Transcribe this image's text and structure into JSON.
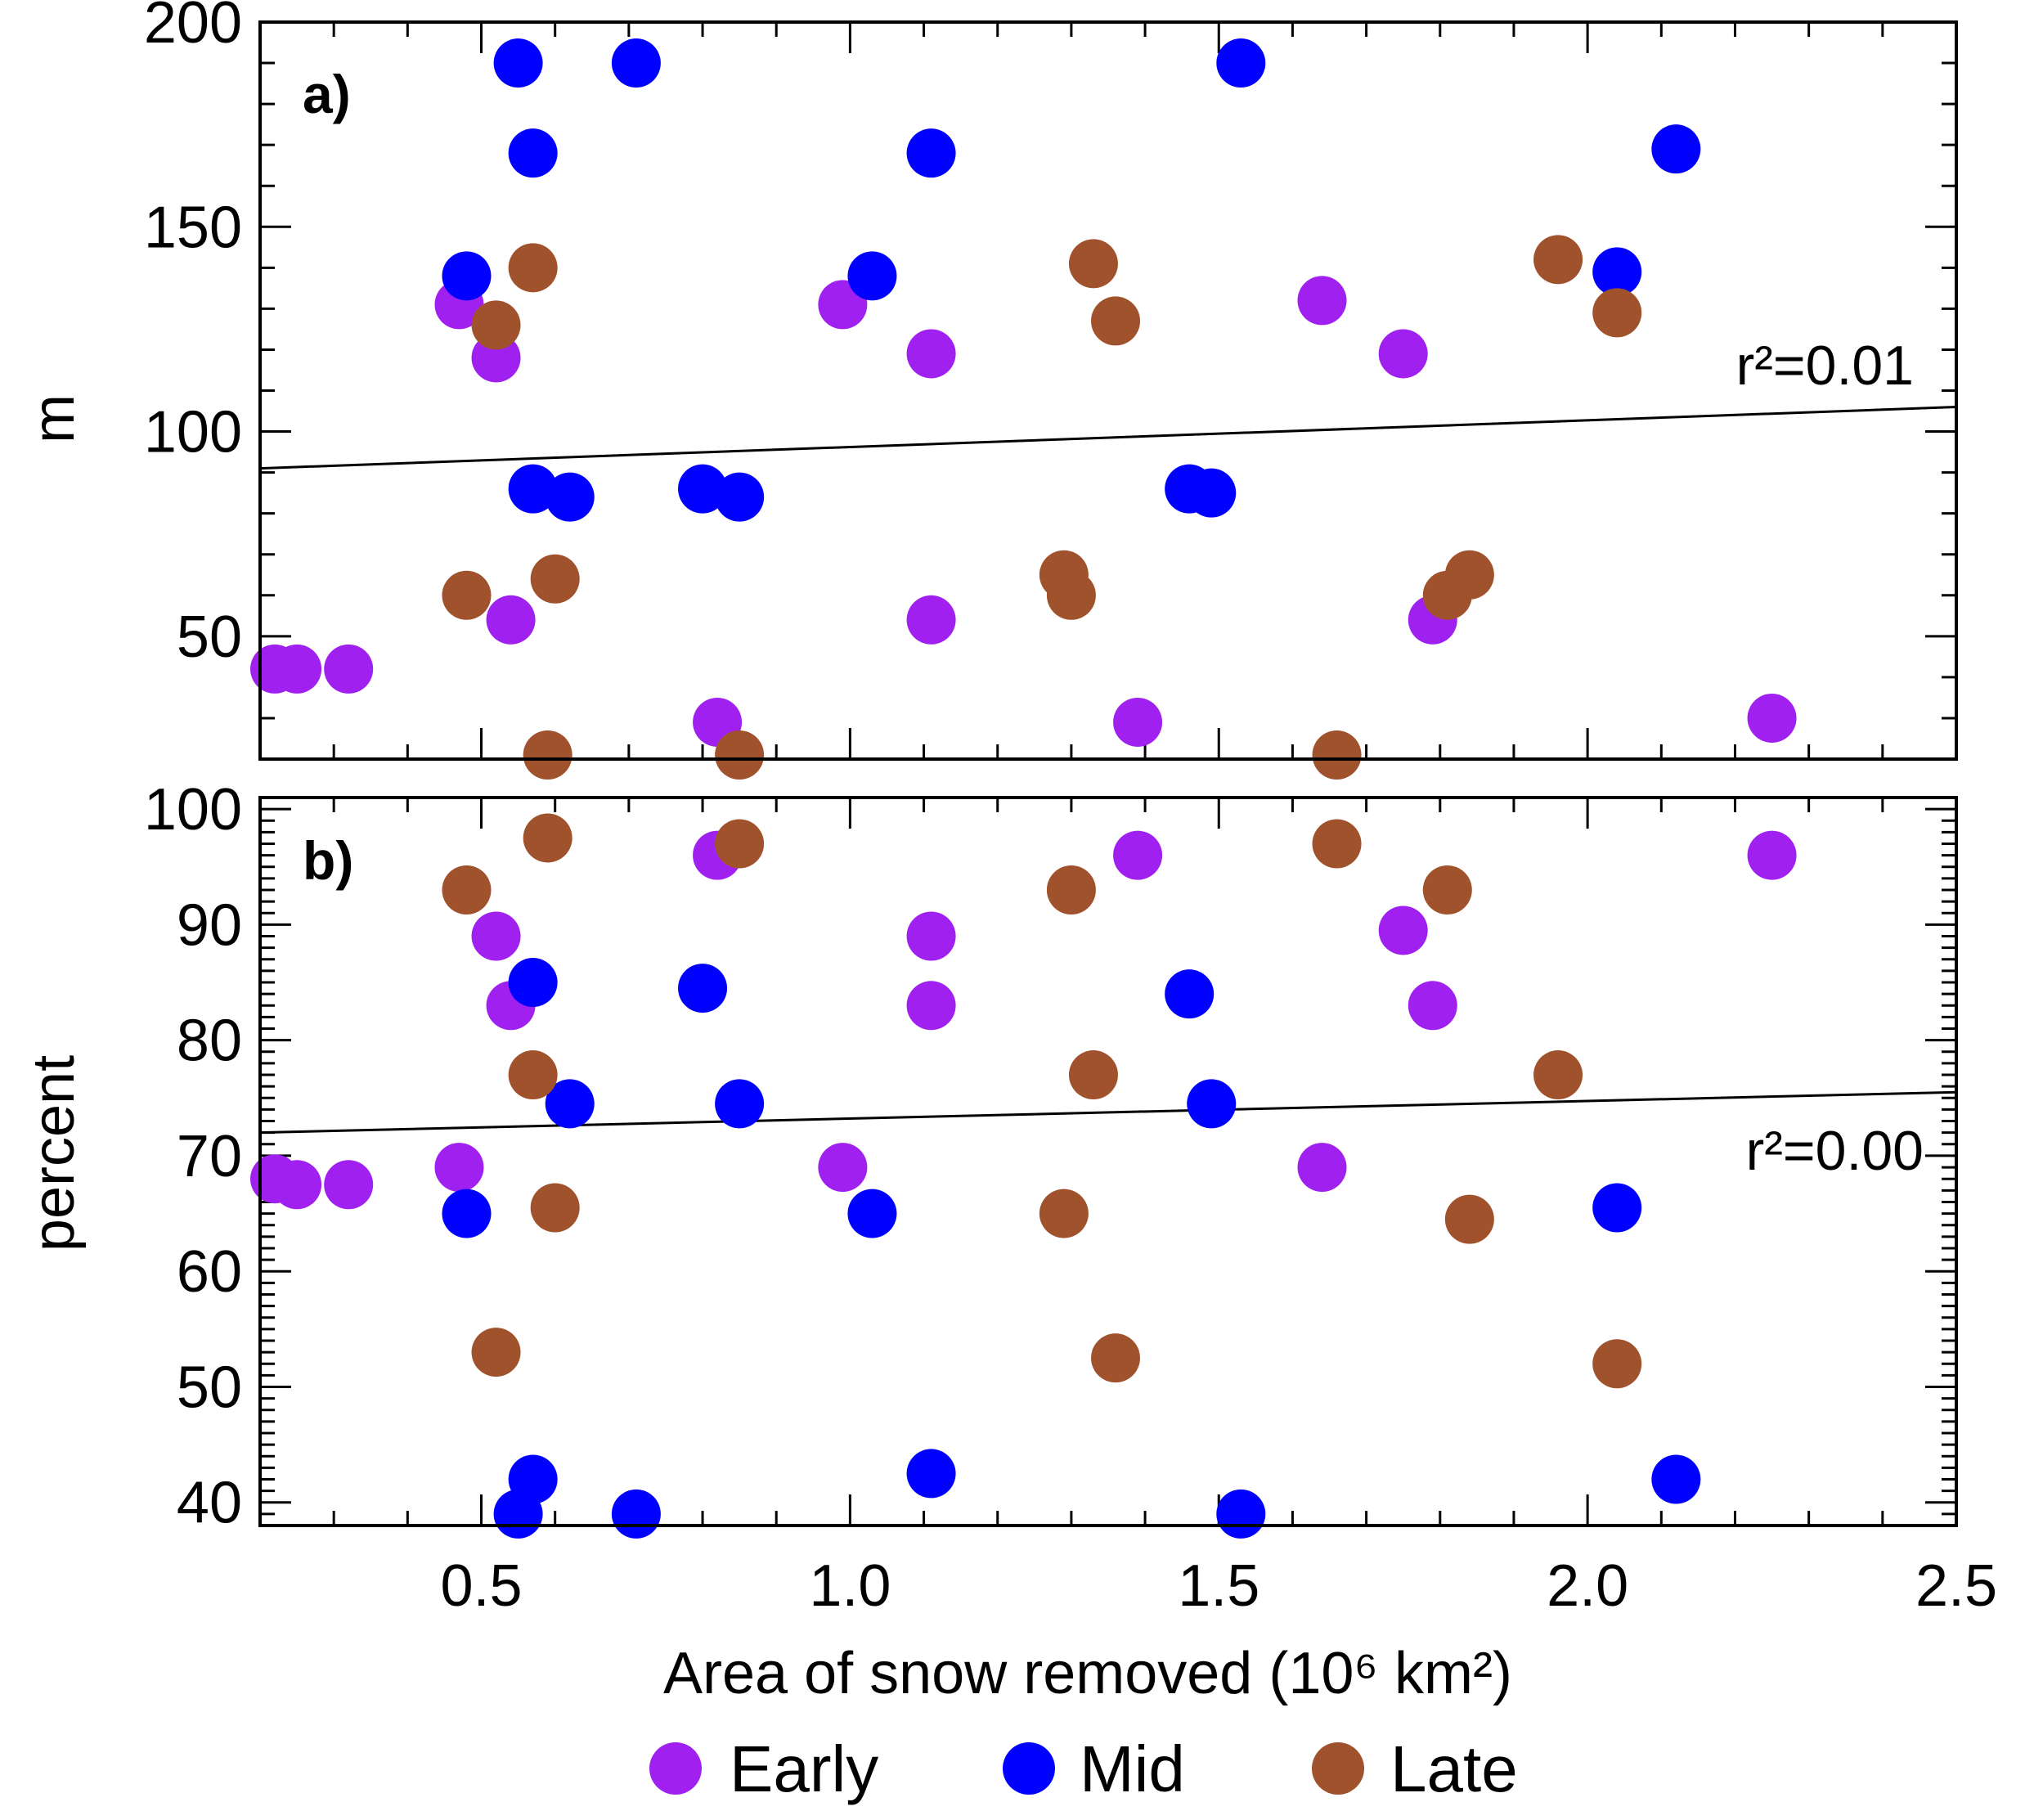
{
  "chart_data": [
    {
      "type": "scatter",
      "panel_label": "a)",
      "ylabel": "m",
      "xlabel": "Area of snow removed (10⁶ km²)",
      "xlim": [
        0.2,
        2.5
      ],
      "ylim": [
        20,
        200
      ],
      "yticks": [
        50,
        100,
        150,
        200
      ],
      "xticks": [
        0.5,
        1.0,
        1.5,
        2.0,
        2.5
      ],
      "annotation": "r²=0.01",
      "fit_line": {
        "x": [
          0.2,
          2.5
        ],
        "y": [
          91,
          106
        ]
      },
      "series": [
        {
          "name": "Early",
          "color": "#a020f0",
          "points": [
            [
              0.22,
              42
            ],
            [
              0.25,
              42
            ],
            [
              0.32,
              42
            ],
            [
              0.47,
              131
            ],
            [
              0.52,
              118
            ],
            [
              0.54,
              54
            ],
            [
              0.82,
              29
            ],
            [
              0.99,
              131
            ],
            [
              1.11,
              119
            ],
            [
              1.11,
              54
            ],
            [
              1.39,
              29
            ],
            [
              1.64,
              132
            ],
            [
              1.75,
              119
            ],
            [
              1.79,
              54
            ],
            [
              2.25,
              30
            ]
          ]
        },
        {
          "name": "Mid",
          "color": "#0000ff",
          "points": [
            [
              0.48,
              138
            ],
            [
              0.55,
              190
            ],
            [
              0.57,
              168
            ],
            [
              0.57,
              86
            ],
            [
              0.62,
              84
            ],
            [
              0.71,
              190
            ],
            [
              0.8,
              86
            ],
            [
              0.85,
              84
            ],
            [
              1.03,
              138
            ],
            [
              1.11,
              168
            ],
            [
              1.46,
              86
            ],
            [
              1.49,
              85
            ],
            [
              1.53,
              190
            ],
            [
              2.04,
              139
            ],
            [
              2.12,
              169
            ]
          ]
        },
        {
          "name": "Late",
          "color": "#a0522d",
          "points": [
            [
              0.48,
              60
            ],
            [
              0.52,
              126
            ],
            [
              0.57,
              140
            ],
            [
              0.59,
              21
            ],
            [
              0.6,
              64
            ],
            [
              0.85,
              21
            ],
            [
              1.29,
              65
            ],
            [
              1.3,
              60
            ],
            [
              1.33,
              141
            ],
            [
              1.36,
              127
            ],
            [
              1.66,
              21
            ],
            [
              1.81,
              60
            ],
            [
              1.84,
              65
            ],
            [
              1.96,
              142
            ],
            [
              2.04,
              129
            ]
          ]
        }
      ]
    },
    {
      "type": "scatter",
      "panel_label": "b)",
      "ylabel": "percent",
      "xlabel": "Area of snow removed (10⁶ km²)",
      "xlim": [
        0.2,
        2.5
      ],
      "ylim": [
        38,
        101
      ],
      "yticks": [
        40,
        50,
        60,
        70,
        80,
        90,
        100
      ],
      "xticks": [
        0.5,
        1.0,
        1.5,
        2.0,
        2.5
      ],
      "annotation": "r²=0.00",
      "fit_line": {
        "x": [
          0.2,
          2.5
        ],
        "y": [
          72,
          75.5
        ]
      },
      "series": [
        {
          "name": "Early",
          "color": "#a020f0",
          "points": [
            [
              0.22,
              68
            ],
            [
              0.25,
              67.5
            ],
            [
              0.32,
              67.5
            ],
            [
              0.47,
              69
            ],
            [
              0.52,
              89
            ],
            [
              0.54,
              83
            ],
            [
              0.82,
              96
            ],
            [
              0.99,
              69
            ],
            [
              1.11,
              89
            ],
            [
              1.11,
              83
            ],
            [
              1.39,
              96
            ],
            [
              1.64,
              69
            ],
            [
              1.75,
              89.5
            ],
            [
              1.79,
              83
            ],
            [
              2.25,
              96
            ]
          ]
        },
        {
          "name": "Mid",
          "color": "#0000ff",
          "points": [
            [
              0.48,
              65
            ],
            [
              0.55,
              39
            ],
            [
              0.57,
              85
            ],
            [
              0.57,
              42
            ],
            [
              0.62,
              74.5
            ],
            [
              0.71,
              39
            ],
            [
              0.8,
              84.5
            ],
            [
              0.85,
              74.5
            ],
            [
              1.03,
              65
            ],
            [
              1.11,
              42.5
            ],
            [
              1.46,
              84
            ],
            [
              1.49,
              74.5
            ],
            [
              1.53,
              39
            ],
            [
              2.04,
              65.5
            ],
            [
              2.12,
              42
            ]
          ]
        },
        {
          "name": "Late",
          "color": "#a0522d",
          "points": [
            [
              0.48,
              93
            ],
            [
              0.52,
              53
            ],
            [
              0.57,
              77
            ],
            [
              0.59,
              97.5
            ],
            [
              0.6,
              65.5
            ],
            [
              0.85,
              97
            ],
            [
              1.29,
              65
            ],
            [
              1.3,
              93
            ],
            [
              1.33,
              77
            ],
            [
              1.36,
              52.5
            ],
            [
              1.66,
              97
            ],
            [
              1.81,
              93
            ],
            [
              1.84,
              64.5
            ],
            [
              1.96,
              77
            ],
            [
              2.04,
              52
            ]
          ]
        }
      ]
    }
  ],
  "legend": [
    {
      "label": "Early",
      "color": "#a020f0"
    },
    {
      "label": "Mid",
      "color": "#0000ff"
    },
    {
      "label": "Late",
      "color": "#a0522d"
    }
  ]
}
